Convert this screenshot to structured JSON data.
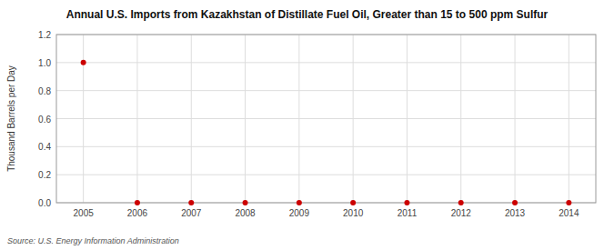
{
  "chart_data": {
    "type": "scatter",
    "title": "Annual U.S. Imports from Kazakhstan of Distillate Fuel Oil, Greater than 15 to 500 ppm Sulfur",
    "ylabel": "Thousand Barrels per Day",
    "source": "Source: U.S. Energy Information Administration",
    "x": [
      2005,
      2006,
      2007,
      2008,
      2009,
      2010,
      2011,
      2012,
      2013,
      2014
    ],
    "values": [
      1.0,
      0.0,
      0.0,
      0.0,
      0.0,
      0.0,
      0.0,
      0.0,
      0.0,
      0.0
    ],
    "color": "#cc0000",
    "xlim": [
      2004.5,
      2014.5
    ],
    "ylim": [
      0.0,
      1.2
    ],
    "xticks": [
      2005,
      2006,
      2007,
      2008,
      2009,
      2010,
      2011,
      2012,
      2013,
      2014
    ],
    "yticks": [
      {
        "value": 0.0,
        "label": "0.0"
      },
      0.2,
      0.4,
      0.6,
      0.8,
      {
        "value": 1.0,
        "label": "1.0"
      },
      1.2
    ],
    "grid": true
  }
}
